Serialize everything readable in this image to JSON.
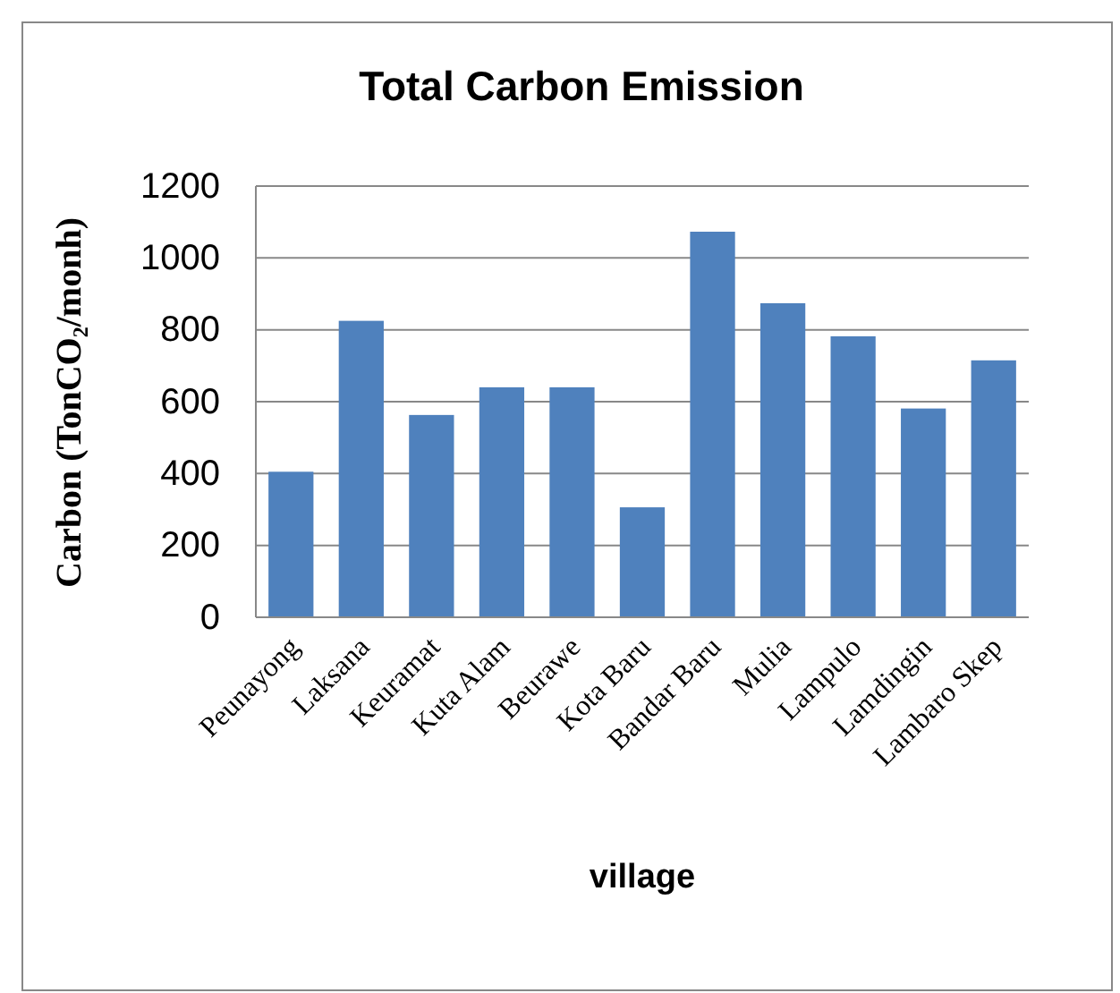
{
  "chart_data": {
    "type": "bar",
    "title": "Total Carbon Emission",
    "xlabel": "village",
    "ylabel": "Carbon (TonCO₂/monh)",
    "categories": [
      "Peunayong",
      "Laksana",
      "Keuramat",
      "Kuta Alam",
      "Beurawe",
      "Kota Baru",
      "Bandar Baru",
      "Mulia",
      "Lampulo",
      "Lamdingin",
      "Lambaro Skep"
    ],
    "values": [
      405,
      825,
      563,
      640,
      640,
      306,
      1073,
      874,
      782,
      581,
      715
    ],
    "color": "#4f81bd",
    "ylim": [
      0,
      1200
    ],
    "yticks": [
      0,
      200,
      400,
      600,
      800,
      1000,
      1200
    ],
    "grid": "y"
  }
}
